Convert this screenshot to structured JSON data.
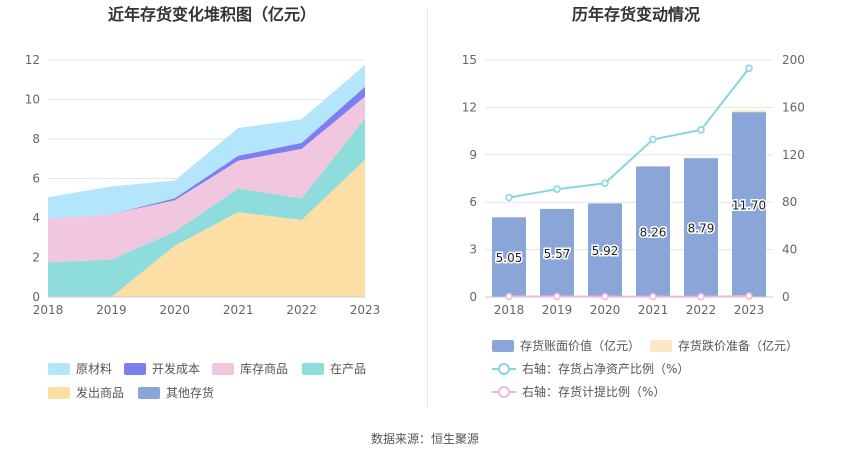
{
  "chart_data": [
    {
      "type": "area",
      "title": "近年存货变化堆积图（亿元）",
      "x": [
        "2018",
        "2019",
        "2020",
        "2021",
        "2022",
        "2023"
      ],
      "ylim": [
        0,
        12
      ],
      "yticks": [
        0,
        2,
        4,
        6,
        8,
        10,
        12
      ],
      "stack_order": [
        "发出商品",
        "在产品",
        "库存商品",
        "开发成本",
        "原材料"
      ],
      "series": [
        {
          "name": "原材料",
          "color": "#b3e5fb",
          "values": [
            1.1,
            1.4,
            0.9,
            1.4,
            1.2,
            1.1
          ]
        },
        {
          "name": "开发成本",
          "color": "#7b7ff0",
          "values": [
            0.0,
            0.0,
            0.1,
            0.25,
            0.3,
            0.5
          ]
        },
        {
          "name": "库存商品",
          "color": "#f1c7e0",
          "values": [
            2.2,
            2.3,
            1.6,
            1.4,
            2.5,
            1.1
          ]
        },
        {
          "name": "在产品",
          "color": "#8fdcdc",
          "values": [
            1.75,
            1.9,
            0.7,
            1.2,
            1.1,
            2.1
          ]
        },
        {
          "name": "发出商品",
          "color": "#fddfa6",
          "values": [
            0.0,
            0.0,
            2.6,
            4.3,
            3.9,
            6.95
          ]
        },
        {
          "name": "其他存货",
          "color": "#8aa6d8",
          "values": [
            0,
            0,
            0,
            0,
            0,
            0
          ]
        }
      ],
      "legend": {
        "position": "bottom"
      },
      "grid": true
    },
    {
      "type": "bar",
      "title": "历年存货变动情况",
      "categories": [
        "2018",
        "2019",
        "2020",
        "2021",
        "2022",
        "2023"
      ],
      "ylim_left": [
        0,
        15
      ],
      "yticks_left": [
        0,
        3,
        6,
        9,
        12,
        15
      ],
      "ylim_right": [
        0,
        200
      ],
      "yticks_right": [
        0,
        40,
        80,
        120,
        160,
        200
      ],
      "series": [
        {
          "name": "存货账面价值（亿元）",
          "kind": "bar",
          "color": "#8aa6d8",
          "values": [
            5.05,
            5.57,
            5.92,
            8.26,
            8.79,
            11.7
          ],
          "labels": [
            "5.05",
            "5.57",
            "5.92",
            "8.26",
            "8.79",
            "11.70"
          ]
        },
        {
          "name": "存货跌价准备（亿元）",
          "kind": "bar",
          "color": "#fde7c2",
          "values": [
            0.02,
            0.02,
            0.02,
            0.02,
            0.02,
            0.1
          ]
        },
        {
          "name": "右轴：存货占净资产比例（%）",
          "kind": "line",
          "axis": "right",
          "color": "#86d6de",
          "values": [
            84,
            91,
            96,
            133,
            141,
            193
          ]
        },
        {
          "name": "右轴：存货计提比例（%）",
          "kind": "line",
          "axis": "right",
          "color": "#f0b8d8",
          "values": [
            0.4,
            0.4,
            0.3,
            0.3,
            0.2,
            0.8
          ]
        }
      ],
      "legend": {
        "position": "bottom"
      },
      "grid": true
    }
  ],
  "footer": {
    "source": "数据来源：恒生聚源"
  }
}
